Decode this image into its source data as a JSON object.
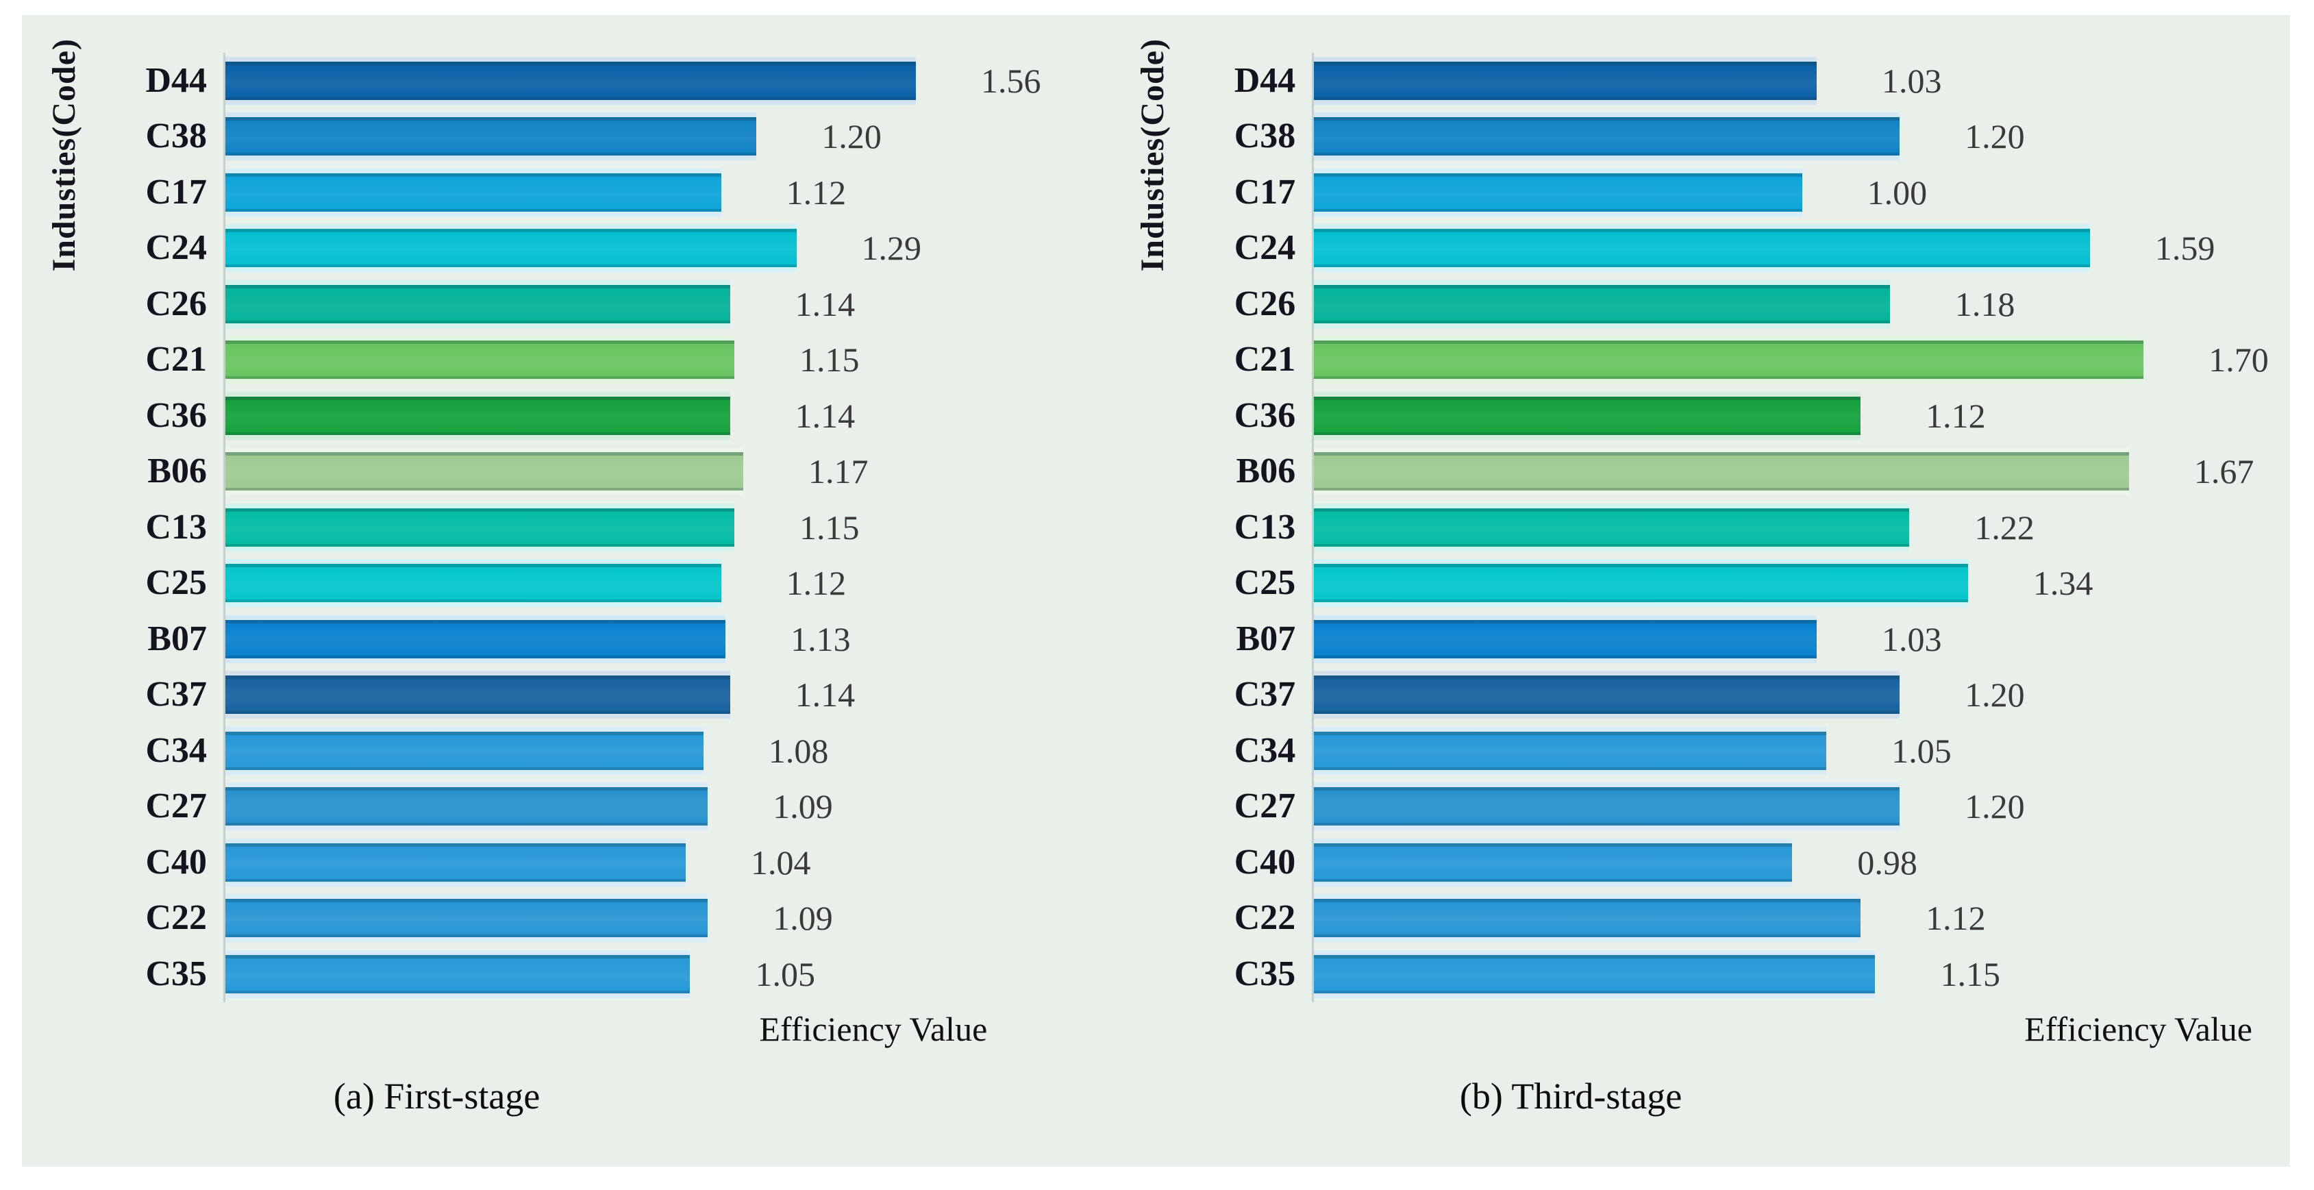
{
  "figure": {
    "panel_background": "#e9f0ea",
    "axis_line_color": "#c6cfc9"
  },
  "chart_data": [
    {
      "type": "bar",
      "orientation": "horizontal",
      "title": "(a) First-stage",
      "xlabel": "Efficiency Value",
      "ylabel": "Industies(Code)",
      "xlim": [
        0,
        2.0
      ],
      "grid": false,
      "legend": "none",
      "categories": [
        "D44",
        "C38",
        "C17",
        "C24",
        "C26",
        "C21",
        "C36",
        "B06",
        "C13",
        "C25",
        "B07",
        "C37",
        "C34",
        "C27",
        "C40",
        "C22",
        "C35"
      ],
      "values": [
        1.56,
        1.2,
        1.12,
        1.29,
        1.14,
        1.15,
        1.14,
        1.17,
        1.15,
        1.12,
        1.13,
        1.14,
        1.08,
        1.09,
        1.04,
        1.09,
        1.05
      ],
      "value_labels": [
        "1.56",
        "1.20",
        "1.12",
        "1.29",
        "1.14",
        "1.15",
        "1.14",
        "1.17",
        "1.15",
        "1.12",
        "1.13",
        "1.14",
        "1.08",
        "1.09",
        "1.04",
        "1.09",
        "1.05"
      ],
      "bar_colors": [
        "#075fa6",
        "#0e81c4",
        "#0aa3da",
        "#00bed0",
        "#00b299",
        "#66c45e",
        "#12a03a",
        "#9cca90",
        "#00bca3",
        "#00c5cb",
        "#067fce",
        "#15609f",
        "#2497d6",
        "#2591cd",
        "#2497d8",
        "#2494d3",
        "#2498d8"
      ]
    },
    {
      "type": "bar",
      "orientation": "horizontal",
      "title": "(b) Third-stage",
      "xlabel": "Efficiency Value",
      "ylabel": "Industies(Code)",
      "xlim": [
        0,
        2.0
      ],
      "grid": false,
      "legend": "none",
      "categories": [
        "D44",
        "C38",
        "C17",
        "C24",
        "C26",
        "C21",
        "C36",
        "B06",
        "C13",
        "C25",
        "B07",
        "C37",
        "C34",
        "C27",
        "C40",
        "C22",
        "C35"
      ],
      "values": [
        1.03,
        1.2,
        1.0,
        1.59,
        1.18,
        1.7,
        1.12,
        1.67,
        1.22,
        1.34,
        1.03,
        1.2,
        1.05,
        1.2,
        0.98,
        1.12,
        1.15
      ],
      "value_labels": [
        "1.03",
        "1.20",
        "1.00",
        "1.59",
        "1.18",
        "1.70",
        "1.12",
        "1.67",
        "1.22",
        "1.34",
        "1.03",
        "1.20",
        "1.05",
        "1.20",
        "0.98",
        "1.12",
        "1.15"
      ],
      "bar_colors": [
        "#075fa6",
        "#0e81c4",
        "#0aa3da",
        "#00bed0",
        "#00b299",
        "#66c45e",
        "#12a03a",
        "#9cca90",
        "#00bca3",
        "#00c5cb",
        "#067fce",
        "#15609f",
        "#2497d6",
        "#2591cd",
        "#2497d8",
        "#2494d3",
        "#2498d8"
      ]
    }
  ]
}
